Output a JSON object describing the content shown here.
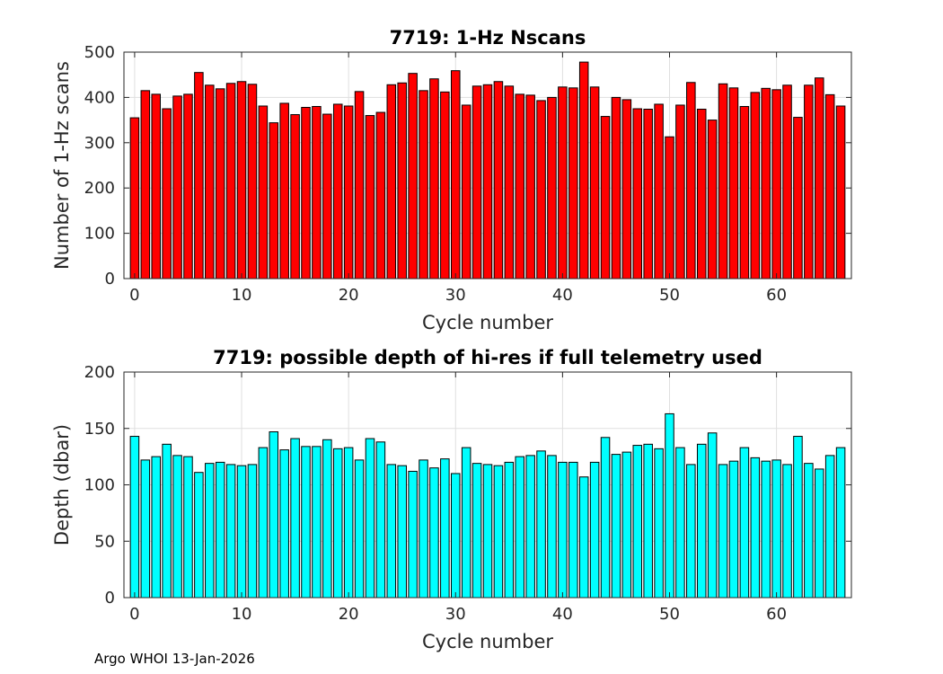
{
  "footer": "Argo WHOI 13-Jan-2026",
  "chart_data": [
    {
      "type": "bar",
      "title": "7719: 1-Hz Nscans",
      "xlabel": "Cycle number",
      "ylabel": "Number of 1-Hz scans",
      "xlim": [
        -1,
        67
      ],
      "ylim": [
        0,
        500
      ],
      "xticks": [
        0,
        10,
        20,
        30,
        40,
        50,
        60
      ],
      "yticks": [
        0,
        100,
        200,
        300,
        400,
        500
      ],
      "grid": true,
      "bar_color": "#ff0000",
      "x": [
        0,
        1,
        2,
        3,
        4,
        5,
        6,
        7,
        8,
        9,
        10,
        11,
        12,
        13,
        14,
        15,
        16,
        17,
        18,
        19,
        20,
        21,
        22,
        23,
        24,
        25,
        26,
        27,
        28,
        29,
        30,
        31,
        32,
        33,
        34,
        35,
        36,
        37,
        38,
        39,
        40,
        41,
        42,
        43,
        44,
        45,
        46,
        47,
        48,
        49,
        50,
        51,
        52,
        53,
        54,
        55,
        56,
        57,
        58,
        59,
        60,
        61,
        62,
        63,
        64,
        65,
        66
      ],
      "values": [
        355,
        415,
        407,
        375,
        403,
        407,
        455,
        427,
        419,
        431,
        435,
        429,
        381,
        344,
        387,
        362,
        378,
        380,
        363,
        385,
        381,
        413,
        360,
        367,
        428,
        432,
        453,
        415,
        441,
        412,
        459,
        383,
        425,
        428,
        435,
        425,
        407,
        405,
        393,
        400,
        423,
        421,
        478,
        423,
        358,
        400,
        395,
        375,
        374,
        385,
        313,
        383,
        433,
        374,
        350,
        430,
        421,
        380,
        411,
        420,
        417,
        427,
        356,
        427,
        443,
        406,
        381
      ]
    },
    {
      "type": "bar",
      "title": "7719: possible depth of hi-res if full telemetry used",
      "xlabel": "Cycle number",
      "ylabel": "Depth (dbar)",
      "xlim": [
        -1,
        67
      ],
      "ylim": [
        0,
        200
      ],
      "xticks": [
        0,
        10,
        20,
        30,
        40,
        50,
        60
      ],
      "yticks": [
        0,
        50,
        100,
        150,
        200
      ],
      "grid": true,
      "bar_color": "#00ffff",
      "x": [
        0,
        1,
        2,
        3,
        4,
        5,
        6,
        7,
        8,
        9,
        10,
        11,
        12,
        13,
        14,
        15,
        16,
        17,
        18,
        19,
        20,
        21,
        22,
        23,
        24,
        25,
        26,
        27,
        28,
        29,
        30,
        31,
        32,
        33,
        34,
        35,
        36,
        37,
        38,
        39,
        40,
        41,
        42,
        43,
        44,
        45,
        46,
        47,
        48,
        49,
        50,
        51,
        52,
        53,
        54,
        55,
        56,
        57,
        58,
        59,
        60,
        61,
        62,
        63,
        64,
        65,
        66
      ],
      "values": [
        143,
        122,
        125,
        136,
        126,
        125,
        111,
        119,
        120,
        118,
        117,
        118,
        133,
        147,
        131,
        141,
        134,
        134,
        140,
        132,
        133,
        122,
        141,
        138,
        118,
        117,
        112,
        122,
        115,
        123,
        110,
        133,
        119,
        118,
        117,
        120,
        125,
        126,
        130,
        126,
        120,
        120,
        107,
        120,
        142,
        127,
        129,
        135,
        136,
        132,
        163,
        133,
        118,
        136,
        146,
        118,
        121,
        133,
        124,
        121,
        122,
        118,
        143,
        119,
        114,
        126,
        133
      ]
    }
  ]
}
